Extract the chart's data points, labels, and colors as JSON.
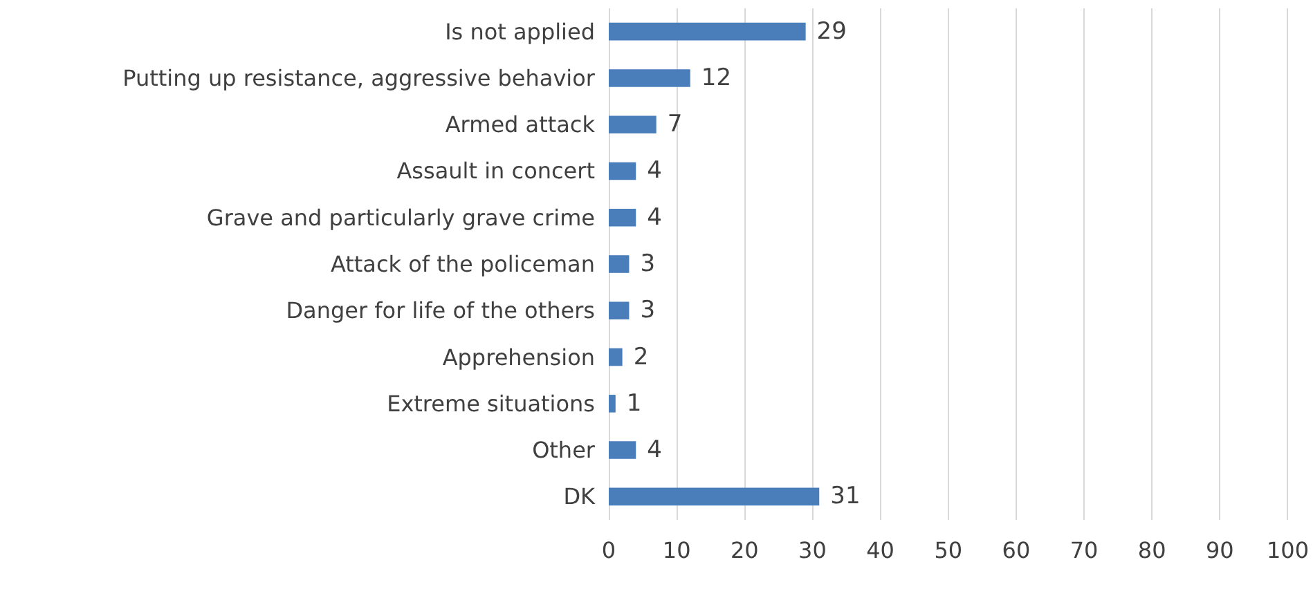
{
  "chart_data": {
    "type": "bar",
    "orientation": "horizontal",
    "categories": [
      "Is not applied",
      "Putting up resistance, aggressive behavior",
      "Armed attack",
      "Assault in concert",
      "Grave and particularly grave crime",
      "Attack of the policeman",
      "Danger for life of the others",
      "Apprehension",
      "Extreme situations",
      "Other",
      "DK"
    ],
    "values": [
      29,
      12,
      7,
      4,
      4,
      3,
      3,
      2,
      1,
      4,
      31
    ],
    "color": "#4a7ebb",
    "xlim": [
      0,
      100
    ],
    "xticks": [
      0,
      10,
      20,
      30,
      40,
      50,
      60,
      70,
      80,
      90,
      100
    ],
    "grid": "x",
    "data_labels": true
  }
}
